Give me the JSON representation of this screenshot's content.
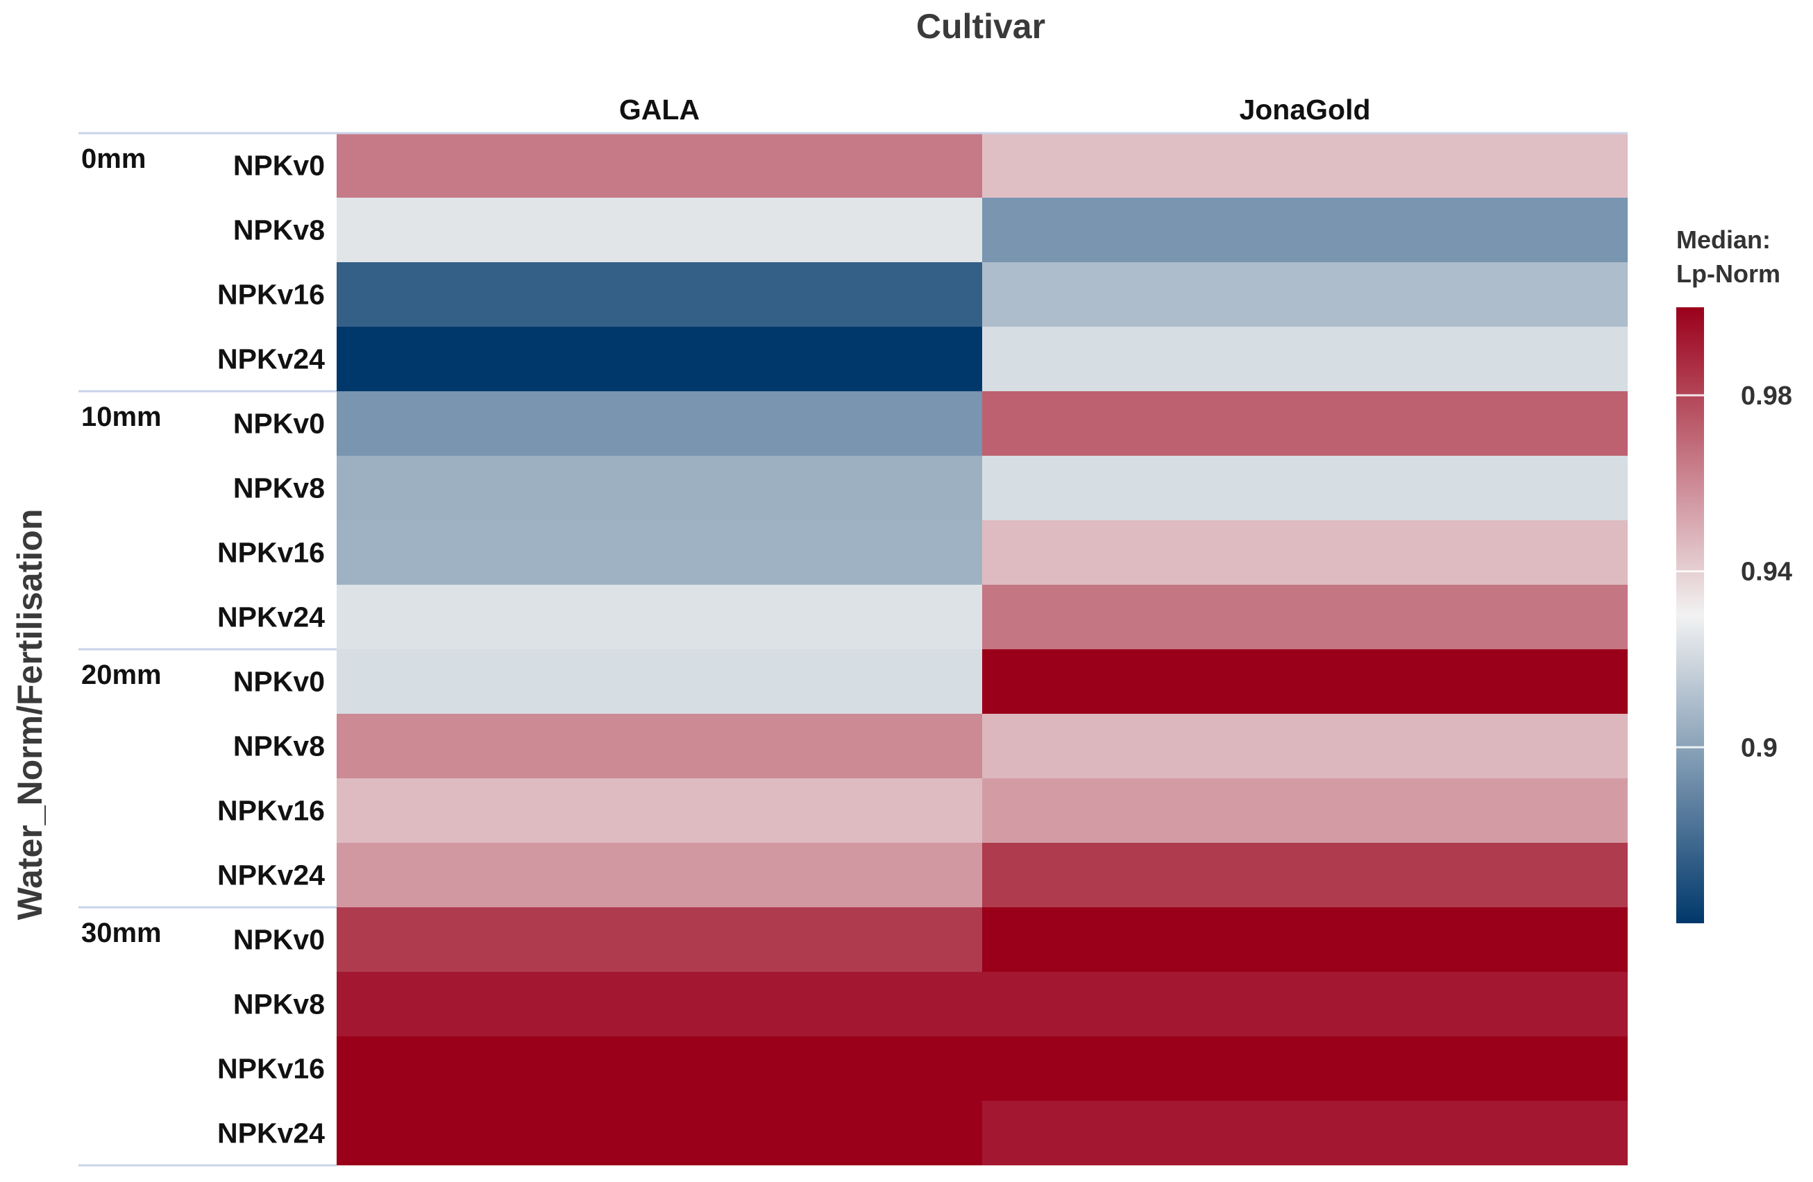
{
  "chart_data": {
    "type": "heatmap",
    "title": "Cultivar",
    "ylabel": "Water_Norm/Fertilisation",
    "columns": [
      "GALA",
      "JonaGold"
    ],
    "groups": [
      {
        "name": "0mm",
        "rows": [
          "NPKv0",
          "NPKv8",
          "NPKv16",
          "NPKv24"
        ]
      },
      {
        "name": "10mm",
        "rows": [
          "NPKv0",
          "NPKv8",
          "NPKv16",
          "NPKv24"
        ]
      },
      {
        "name": "20mm",
        "rows": [
          "NPKv0",
          "NPKv8",
          "NPKv16",
          "NPKv24"
        ]
      },
      {
        "name": "30mm",
        "rows": [
          "NPKv0",
          "NPKv8",
          "NPKv16",
          "NPKv24"
        ]
      }
    ],
    "values": [
      [
        0.965,
        0.945
      ],
      [
        0.925,
        0.895
      ],
      [
        0.875,
        0.91
      ],
      [
        0.86,
        0.922
      ],
      [
        0.895,
        0.972
      ],
      [
        0.905,
        0.922
      ],
      [
        0.906,
        0.946
      ],
      [
        0.924,
        0.966
      ],
      [
        0.922,
        1.0
      ],
      [
        0.96,
        0.947
      ],
      [
        0.946,
        0.955
      ],
      [
        0.956,
        0.983
      ],
      [
        0.983,
        1.0
      ],
      [
        0.993,
        0.993
      ],
      [
        1.0,
        1.0
      ],
      [
        1.0,
        0.993
      ]
    ],
    "legend": {
      "title_line1": "Median:",
      "title_line2": "Lp-Norm",
      "ticks": [
        0.98,
        0.94,
        0.9
      ],
      "tick_labels": [
        "0.98",
        "0.94",
        "0.9"
      ],
      "range": [
        0.86,
        1.0
      ],
      "placement": "right"
    },
    "color_scale": {
      "low": "#00386b",
      "mid": "#f2f2f2",
      "high": "#9a001a",
      "midpoint": 0.93
    }
  }
}
